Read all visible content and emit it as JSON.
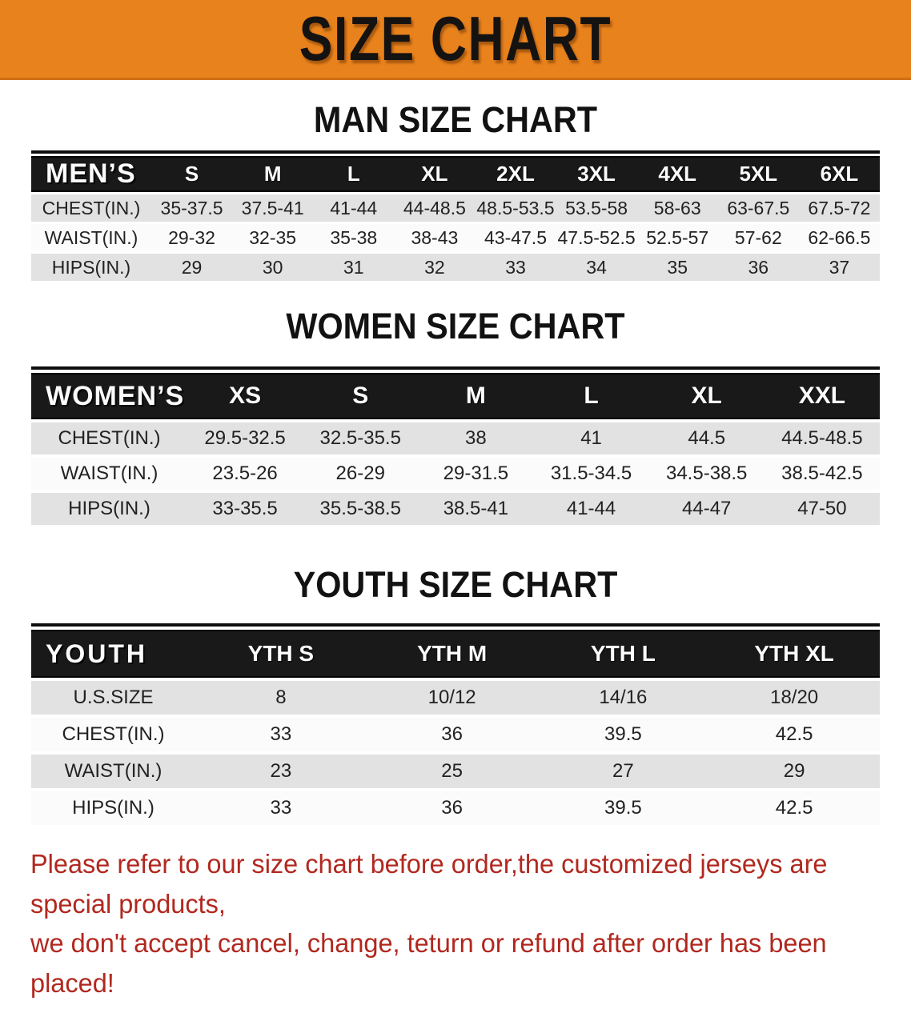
{
  "banner": {
    "title": "SIZE CHART",
    "bg_color": "#e8821c",
    "text_color": "#151312"
  },
  "sections": [
    {
      "heading": "MAN SIZE CHART",
      "table": {
        "label": "MEN’S",
        "columns": [
          "S",
          "M",
          "L",
          "XL",
          "2XL",
          "3XL",
          "4XL",
          "5XL",
          "6XL"
        ],
        "rows": [
          {
            "label": "CHEST(IN.)",
            "values": [
              "35-37.5",
              "37.5-41",
              "41-44",
              "44-48.5",
              "48.5-53.5",
              "53.5-58",
              "58-63",
              "63-67.5",
              "67.5-72"
            ]
          },
          {
            "label": "WAIST(IN.)",
            "values": [
              "29-32",
              "32-35",
              "35-38",
              "38-43",
              "43-47.5",
              "47.5-52.5",
              "52.5-57",
              "57-62",
              "62-66.5"
            ]
          },
          {
            "label": "HIPS(IN.)",
            "values": [
              "29",
              "30",
              "31",
              "32",
              "33",
              "34",
              "35",
              "36",
              "37"
            ]
          }
        ]
      }
    },
    {
      "heading": "WOMEN SIZE CHART",
      "table": {
        "label": "WOMEN’S",
        "columns": [
          "XS",
          "S",
          "M",
          "L",
          "XL",
          "XXL"
        ],
        "rows": [
          {
            "label": "CHEST(IN.)",
            "values": [
              "29.5-32.5",
              "32.5-35.5",
              "38",
              "41",
              "44.5",
              "44.5-48.5"
            ]
          },
          {
            "label": "WAIST(IN.)",
            "values": [
              "23.5-26",
              "26-29",
              "29-31.5",
              "31.5-34.5",
              "34.5-38.5",
              "38.5-42.5"
            ]
          },
          {
            "label": "HIPS(IN.)",
            "values": [
              "33-35.5",
              "35.5-38.5",
              "38.5-41",
              "41-44",
              "44-47",
              "47-50"
            ]
          }
        ]
      }
    },
    {
      "heading": "YOUTH SIZE CHART",
      "table": {
        "label": "YOUTH",
        "columns": [
          "YTH S",
          "YTH M",
          "YTH L",
          "YTH XL"
        ],
        "rows": [
          {
            "label": "U.S.SIZE",
            "values": [
              "8",
              "10/12",
              "14/16",
              "18/20"
            ]
          },
          {
            "label": "CHEST(IN.)",
            "values": [
              "33",
              "36",
              "39.5",
              "42.5"
            ]
          },
          {
            "label": "WAIST(IN.)",
            "values": [
              "23",
              "25",
              "27",
              "29"
            ]
          },
          {
            "label": "HIPS(IN.)",
            "values": [
              "33",
              "36",
              "39.5",
              "42.5"
            ]
          }
        ]
      }
    }
  ],
  "footer": {
    "line1": "Please refer to our size chart before order,the customized jerseys are special products,",
    "line2": "we don't accept cancel, change, teturn or refund after order has been placed!",
    "text_color": "#b1281f"
  },
  "table_style": {
    "header_bg": "#191919",
    "row_alt_bg": "#e2e2e2",
    "row_bg": "#fbfbfb"
  }
}
